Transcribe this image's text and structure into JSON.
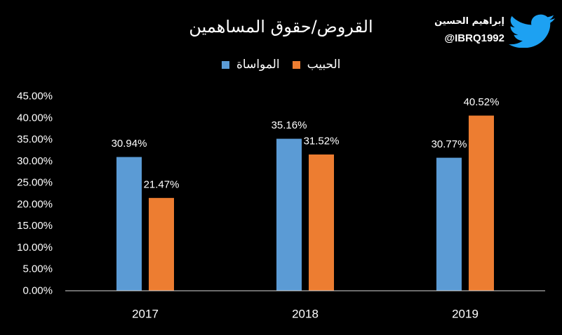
{
  "header": {
    "author_name": "إبراهيم الحسين",
    "author_handle": "@IBRQ1992",
    "author_icon": "twitter-bird-icon"
  },
  "colors": {
    "background": "#000000",
    "text": "#FFFFFF",
    "axis": "#D9D9D9",
    "twitter_blue": "#1DA1F2"
  },
  "chart_data": {
    "type": "bar",
    "title": "القروض/حقوق المساهمين",
    "categories": [
      "2017",
      "2018",
      "2019"
    ],
    "series": [
      {
        "name": "المواساة",
        "values": [
          30.94,
          35.16,
          30.77
        ],
        "labels": [
          "30.94%",
          "35.16%",
          "30.77%"
        ],
        "color": "#5B9BD5"
      },
      {
        "name": "الحبيب",
        "values": [
          21.47,
          31.52,
          40.52
        ],
        "labels": [
          "21.47%",
          "31.52%",
          "40.52%"
        ],
        "color": "#ED7D31"
      }
    ],
    "ylim": [
      0,
      45
    ],
    "yticks": [
      0,
      5,
      10,
      15,
      20,
      25,
      30,
      35,
      40,
      45
    ],
    "ytick_labels": [
      "0.00%",
      "5.00%",
      "10.00%",
      "15.00%",
      "20.00%",
      "25.00%",
      "30.00%",
      "35.00%",
      "40.00%",
      "45.00%"
    ],
    "grid": false,
    "legend": "top"
  }
}
